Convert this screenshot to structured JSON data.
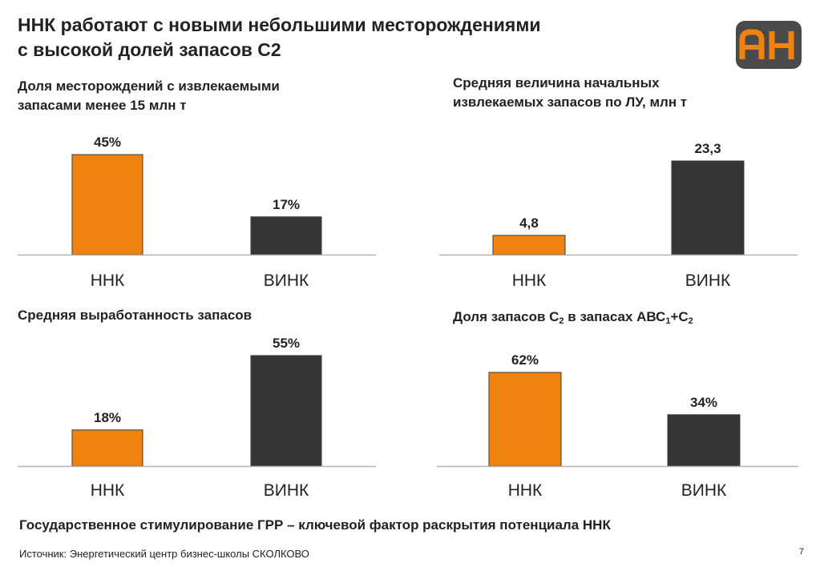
{
  "slide": {
    "title_line1": "ННК работают с новыми небольшими месторождениями",
    "title_line2": "с высокой долей запасов С2",
    "logo_text": "АН",
    "bottom_note": "Государственное стимулирование ГРР – ключевой фактор раскрытия потенциала ННК",
    "source": "Источник: Энергетический центр бизнес-школы СКОЛКОВО",
    "page_number": "7"
  },
  "colors": {
    "orange": "#F0820F",
    "dark": "#353535",
    "axis": "#b4b4b4",
    "logo_bg": "#4a4a4a",
    "logo_fg": "#F0820F"
  },
  "panels": [
    {
      "title_lines": [
        "Доля месторождений с извлекаемыми",
        "запасами менее 15 млн т"
      ]
    },
    {
      "title_lines": [
        "Средняя величина начальных",
        "извлекаемых запасов по ЛУ, млн т"
      ]
    },
    {
      "title_lines": [
        "Средняя выработанность запасов"
      ]
    },
    {
      "title_parts": {
        "prefix": "Доля запасов С",
        "sub1": "2",
        "middle": " в запасах АВС",
        "sub2": "1",
        "middle2": "+С",
        "sub3": "2"
      }
    }
  ],
  "chart_data": [
    {
      "type": "bar",
      "title": "Доля месторождений с извлекаемыми запасами менее 15 млн т",
      "categories": [
        "ННК",
        "ВИНК"
      ],
      "values": [
        45,
        17
      ],
      "labels": [
        "45%",
        "17%"
      ],
      "colors": [
        "#F0820F",
        "#353535"
      ],
      "ylim": [
        0,
        45
      ]
    },
    {
      "type": "bar",
      "title": "Средняя величина начальных извлекаемых запасов по ЛУ, млн т",
      "categories": [
        "ННК",
        "ВИНК"
      ],
      "values": [
        4.8,
        23.3
      ],
      "labels": [
        "4,8",
        "23,3"
      ],
      "colors": [
        "#F0820F",
        "#353535"
      ],
      "ylim": [
        0,
        23.3
      ]
    },
    {
      "type": "bar",
      "title": "Средняя выработанность запасов",
      "categories": [
        "ННК",
        "ВИНК"
      ],
      "values": [
        18,
        55
      ],
      "labels": [
        "18%",
        "55%"
      ],
      "colors": [
        "#F0820F",
        "#353535"
      ],
      "ylim": [
        0,
        55
      ]
    },
    {
      "type": "bar",
      "title": "Доля запасов С2 в запасах АВС1+С2",
      "categories": [
        "ННК",
        "ВИНК"
      ],
      "values": [
        62,
        34
      ],
      "labels": [
        "62%",
        "34%"
      ],
      "colors": [
        "#F0820F",
        "#353535"
      ],
      "ylim": [
        0,
        62
      ]
    }
  ]
}
